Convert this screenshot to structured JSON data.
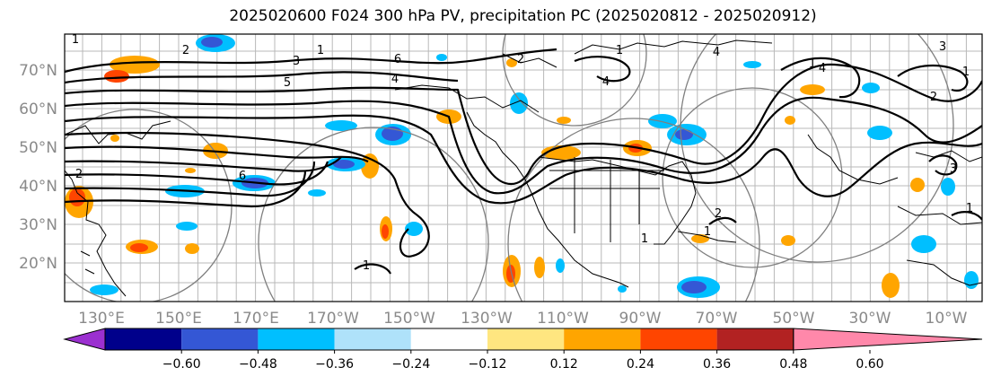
{
  "title": "2025020600 F024 300 hPa PV, precipitation PC (2025020812 - 2025020912)",
  "map": {
    "lat_labels": [
      "70°N",
      "60°N",
      "50°N",
      "40°N",
      "30°N",
      "20°N"
    ],
    "lon_labels": [
      "130°E",
      "150°E",
      "170°E",
      "170°W",
      "150°W",
      "130°W",
      "110°W",
      "90°W",
      "70°W",
      "50°W",
      "30°W",
      "10°W"
    ],
    "contour_labels": [
      "1",
      "3",
      "5",
      "6",
      "4",
      "2",
      "1",
      "6",
      "1",
      "2",
      "4",
      "3",
      "1",
      "2",
      "4",
      "1",
      "2",
      "4",
      "1",
      "1",
      "2",
      "1",
      "3",
      "1"
    ]
  },
  "colorbar": {
    "labels": [
      "−0.60",
      "−0.48",
      "−0.36",
      "−0.24",
      "−0.12",
      "0.12",
      "0.24",
      "0.36",
      "0.48",
      "0.60"
    ],
    "colors": [
      "#9b30d0",
      "#00008b",
      "#3457d5",
      "#00bfff",
      "#afe2fa",
      "#ffffff",
      "#ffe680",
      "#ffa500",
      "#ff4500",
      "#b22222",
      "#ff88aa"
    ]
  }
}
